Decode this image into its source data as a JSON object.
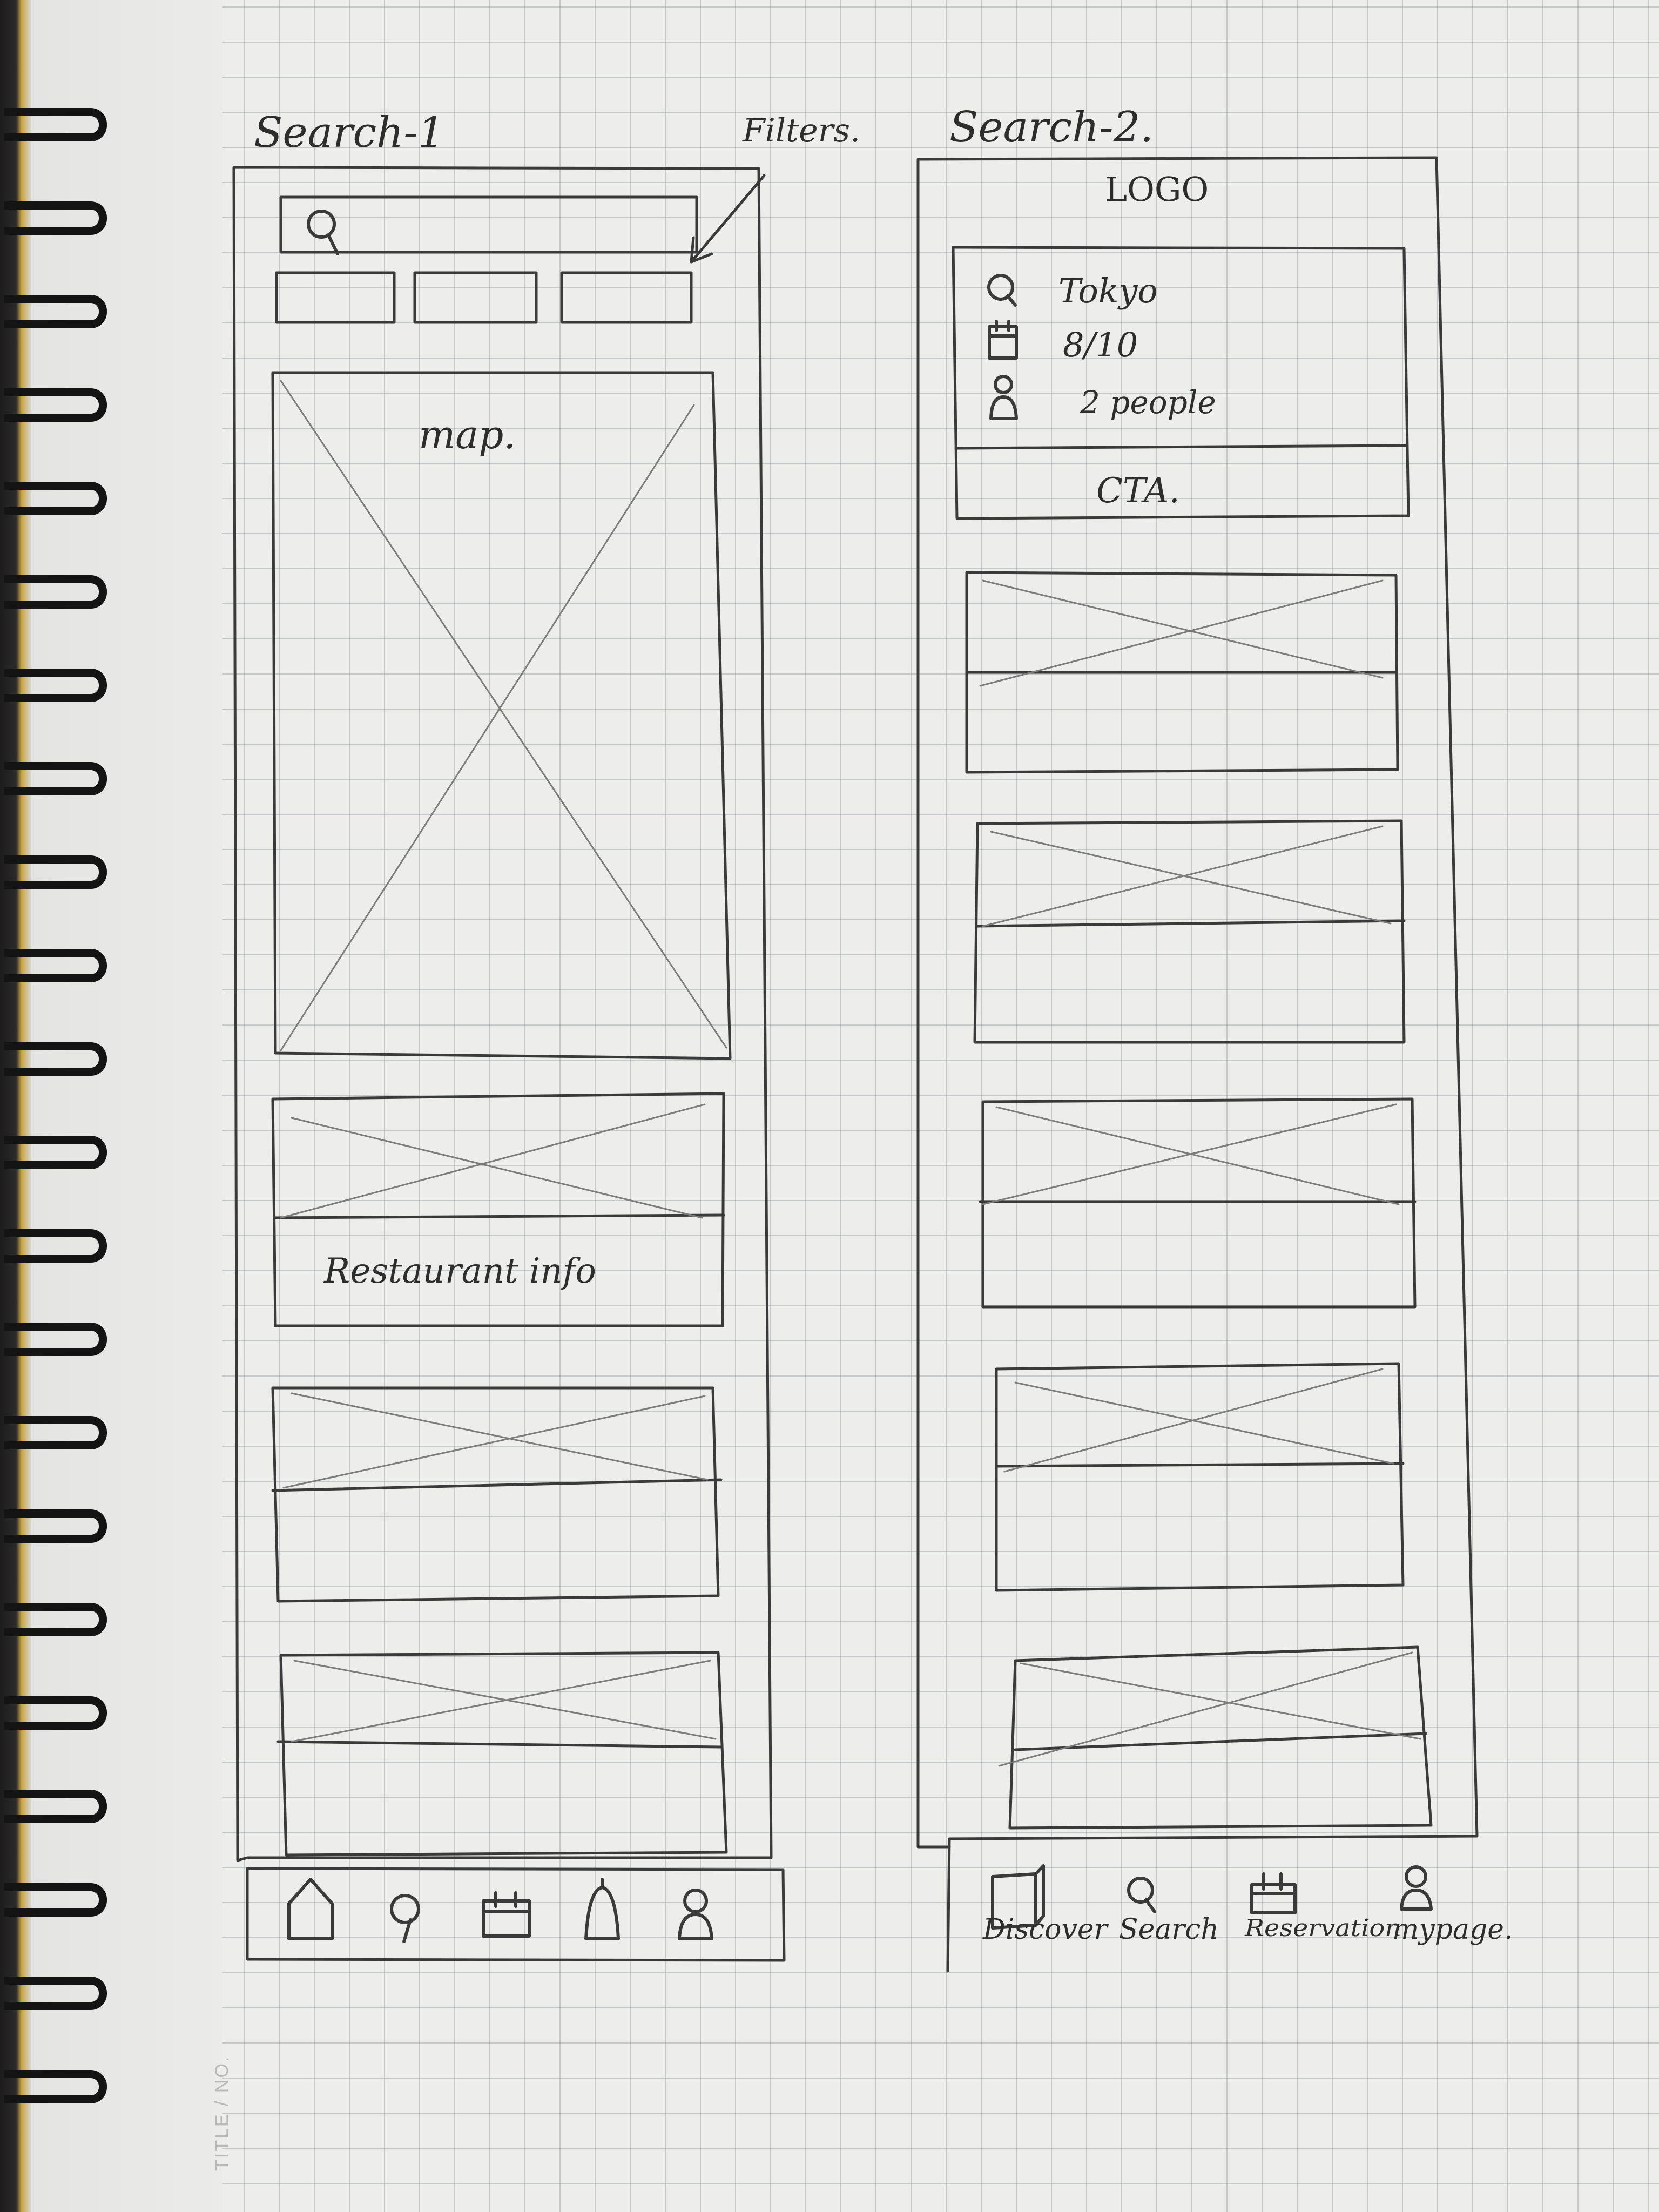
{
  "notebook": {
    "footer_label": "TITLE / NO."
  },
  "screen1": {
    "title": "Search-1",
    "filters_annotation": "Filters.",
    "map_label": "map.",
    "card_label": "Restaurant info",
    "tab_icons": [
      "home-icon",
      "search-icon",
      "calendar-icon",
      "bell-icon",
      "profile-icon"
    ]
  },
  "screen2": {
    "title": "Search-2.",
    "logo": "LOGO",
    "search_location": "Tokyo",
    "search_date": "8/10",
    "search_guests": "2 people",
    "cta_label": "CTA.",
    "tabs": [
      {
        "icon": "discover-icon",
        "label": "Discover"
      },
      {
        "icon": "search-icon",
        "label": "Search"
      },
      {
        "icon": "calendar-icon",
        "label": "Reservation"
      },
      {
        "icon": "profile-icon",
        "label": "mypage."
      }
    ]
  }
}
